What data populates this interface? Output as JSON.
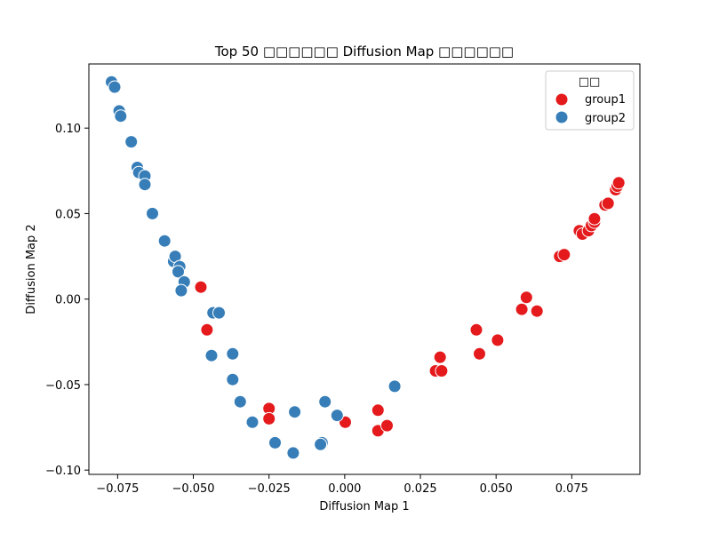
{
  "chart_data": {
    "type": "scatter",
    "title": "Top 50 □□□□□□ Diffusion Map □□□□□□",
    "xlabel": "Diffusion Map 1",
    "ylabel": "Diffusion Map 2",
    "xlim": [
      -0.0845,
      0.0975
    ],
    "ylim": [
      -0.1025,
      0.1375
    ],
    "xticks": [
      -0.075,
      -0.05,
      -0.025,
      0.0,
      0.025,
      0.05,
      0.075
    ],
    "xtick_labels": [
      "−0.075",
      "−0.050",
      "−0.025",
      "0.000",
      "0.025",
      "0.050",
      "0.075"
    ],
    "yticks": [
      -0.1,
      -0.05,
      0.0,
      0.05,
      0.1
    ],
    "ytick_labels": [
      "−0.10",
      "−0.05",
      "0.00",
      "0.05",
      "0.10"
    ],
    "grid": false,
    "legend": {
      "title": "□□",
      "placement": "top-right"
    },
    "series": [
      {
        "name": "group1",
        "color": "#e41a1c",
        "points": [
          [
            -0.0475,
            0.007
          ],
          [
            -0.0455,
            -0.018
          ],
          [
            -0.025,
            -0.064
          ],
          [
            -0.025,
            -0.07
          ],
          [
            0.0002,
            -0.072
          ],
          [
            0.011,
            -0.065
          ],
          [
            0.011,
            -0.077
          ],
          [
            0.014,
            -0.074
          ],
          [
            0.03,
            -0.042
          ],
          [
            0.032,
            -0.042
          ],
          [
            0.0315,
            -0.034
          ],
          [
            0.0435,
            -0.018
          ],
          [
            0.0445,
            -0.032
          ],
          [
            0.0505,
            -0.024
          ],
          [
            0.0585,
            -0.006
          ],
          [
            0.06,
            0.001
          ],
          [
            0.0635,
            -0.007
          ],
          [
            0.071,
            0.025
          ],
          [
            0.0725,
            0.026
          ],
          [
            0.0775,
            0.04
          ],
          [
            0.0785,
            0.038
          ],
          [
            0.0805,
            0.04
          ],
          [
            0.0815,
            0.043
          ],
          [
            0.0825,
            0.045
          ],
          [
            0.0825,
            0.047
          ],
          [
            0.086,
            0.055
          ],
          [
            0.087,
            0.056
          ],
          [
            0.0895,
            0.064
          ],
          [
            0.09,
            0.066
          ],
          [
            0.0905,
            0.068
          ]
        ]
      },
      {
        "name": "group2",
        "color": "#377eb8",
        "points": [
          [
            -0.077,
            0.127
          ],
          [
            -0.076,
            0.124
          ],
          [
            -0.0745,
            0.11
          ],
          [
            -0.074,
            0.107
          ],
          [
            -0.0705,
            0.092
          ],
          [
            -0.0685,
            0.077
          ],
          [
            -0.068,
            0.074
          ],
          [
            -0.066,
            0.072
          ],
          [
            -0.066,
            0.067
          ],
          [
            -0.0635,
            0.05
          ],
          [
            -0.0595,
            0.034
          ],
          [
            -0.0565,
            0.022
          ],
          [
            -0.056,
            0.025
          ],
          [
            -0.0545,
            0.019
          ],
          [
            -0.055,
            0.016
          ],
          [
            -0.053,
            0.01
          ],
          [
            -0.054,
            0.005
          ],
          [
            -0.0435,
            -0.008
          ],
          [
            -0.0415,
            -0.008
          ],
          [
            -0.044,
            -0.033
          ],
          [
            -0.037,
            -0.032
          ],
          [
            -0.037,
            -0.047
          ],
          [
            -0.0345,
            -0.06
          ],
          [
            -0.0305,
            -0.072
          ],
          [
            -0.023,
            -0.084
          ],
          [
            -0.017,
            -0.09
          ],
          [
            -0.0165,
            -0.066
          ],
          [
            -0.0075,
            -0.084
          ],
          [
            -0.008,
            -0.085
          ],
          [
            -0.0065,
            -0.06
          ],
          [
            -0.0025,
            -0.068
          ],
          [
            0.0165,
            -0.051
          ]
        ]
      }
    ]
  }
}
